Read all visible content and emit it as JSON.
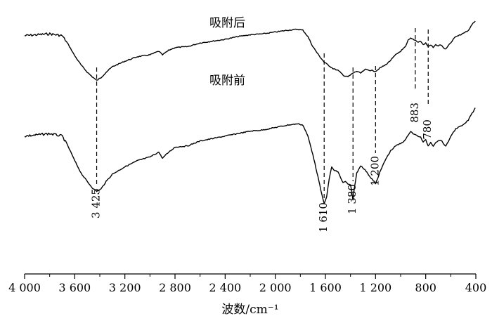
{
  "chart_data": {
    "type": "line",
    "xlabel": "波数/cm⁻¹",
    "xlim": [
      4000,
      400
    ],
    "x_reversed": true,
    "x_ticks": [
      4000,
      3600,
      3200,
      2800,
      2400,
      2000,
      1600,
      1200,
      800,
      400
    ],
    "x_tick_labels": [
      "4 000",
      "3 600",
      "3 200",
      "2 800",
      "2 400",
      "2 000",
      "1 600",
      "1 200",
      "800",
      "400"
    ],
    "grid": false,
    "series": [
      {
        "name": "吸附后",
        "points": [
          [
            4000,
            0.84
          ],
          [
            3900,
            0.85
          ],
          [
            3800,
            0.86
          ],
          [
            3700,
            0.84
          ],
          [
            3650,
            0.74
          ],
          [
            3600,
            0.62
          ],
          [
            3550,
            0.52
          ],
          [
            3500,
            0.44
          ],
          [
            3460,
            0.39
          ],
          [
            3425,
            0.35
          ],
          [
            3390,
            0.38
          ],
          [
            3350,
            0.44
          ],
          [
            3300,
            0.5
          ],
          [
            3200,
            0.56
          ],
          [
            3100,
            0.61
          ],
          [
            3000,
            0.63
          ],
          [
            2930,
            0.67
          ],
          [
            2900,
            0.63
          ],
          [
            2850,
            0.68
          ],
          [
            2800,
            0.71
          ],
          [
            2700,
            0.72
          ],
          [
            2600,
            0.76
          ],
          [
            2500,
            0.78
          ],
          [
            2400,
            0.8
          ],
          [
            2300,
            0.83
          ],
          [
            2200,
            0.85
          ],
          [
            2100,
            0.86
          ],
          [
            2000,
            0.88
          ],
          [
            1900,
            0.9
          ],
          [
            1820,
            0.91
          ],
          [
            1780,
            0.9
          ],
          [
            1740,
            0.83
          ],
          [
            1700,
            0.72
          ],
          [
            1650,
            0.62
          ],
          [
            1610,
            0.55
          ],
          [
            1580,
            0.52
          ],
          [
            1540,
            0.48
          ],
          [
            1500,
            0.46
          ],
          [
            1450,
            0.4
          ],
          [
            1420,
            0.39
          ],
          [
            1380,
            0.43
          ],
          [
            1350,
            0.45
          ],
          [
            1320,
            0.43
          ],
          [
            1280,
            0.47
          ],
          [
            1240,
            0.46
          ],
          [
            1200,
            0.45
          ],
          [
            1160,
            0.49
          ],
          [
            1120,
            0.52
          ],
          [
            1080,
            0.57
          ],
          [
            1040,
            0.63
          ],
          [
            1000,
            0.67
          ],
          [
            960,
            0.72
          ],
          [
            940,
            0.79
          ],
          [
            920,
            0.81
          ],
          [
            900,
            0.8
          ],
          [
            883,
            0.79
          ],
          [
            860,
            0.77
          ],
          [
            840,
            0.78
          ],
          [
            820,
            0.74
          ],
          [
            800,
            0.76
          ],
          [
            780,
            0.72
          ],
          [
            760,
            0.74
          ],
          [
            740,
            0.71
          ],
          [
            720,
            0.74
          ],
          [
            700,
            0.73
          ],
          [
            680,
            0.74
          ],
          [
            660,
            0.71
          ],
          [
            640,
            0.69
          ],
          [
            620,
            0.73
          ],
          [
            600,
            0.76
          ],
          [
            580,
            0.8
          ],
          [
            560,
            0.83
          ],
          [
            540,
            0.84
          ],
          [
            520,
            0.85
          ],
          [
            500,
            0.87
          ],
          [
            480,
            0.88
          ],
          [
            460,
            0.9
          ],
          [
            440,
            0.94
          ],
          [
            420,
            0.98
          ],
          [
            405,
            1.0
          ]
        ]
      },
      {
        "name": "吸附前",
        "points": [
          [
            4000,
            0.55
          ],
          [
            3900,
            0.56
          ],
          [
            3800,
            0.57
          ],
          [
            3700,
            0.55
          ],
          [
            3650,
            0.46
          ],
          [
            3600,
            0.35
          ],
          [
            3550,
            0.25
          ],
          [
            3500,
            0.18
          ],
          [
            3460,
            0.13
          ],
          [
            3425,
            0.1
          ],
          [
            3390,
            0.12
          ],
          [
            3350,
            0.18
          ],
          [
            3300,
            0.24
          ],
          [
            3200,
            0.3
          ],
          [
            3100,
            0.35
          ],
          [
            3000,
            0.38
          ],
          [
            2930,
            0.42
          ],
          [
            2900,
            0.37
          ],
          [
            2850,
            0.42
          ],
          [
            2800,
            0.46
          ],
          [
            2700,
            0.47
          ],
          [
            2600,
            0.51
          ],
          [
            2500,
            0.53
          ],
          [
            2400,
            0.55
          ],
          [
            2300,
            0.57
          ],
          [
            2200,
            0.59
          ],
          [
            2100,
            0.6
          ],
          [
            2000,
            0.62
          ],
          [
            1900,
            0.64
          ],
          [
            1820,
            0.65
          ],
          [
            1780,
            0.64
          ],
          [
            1740,
            0.55
          ],
          [
            1700,
            0.4
          ],
          [
            1660,
            0.22
          ],
          [
            1630,
            0.08
          ],
          [
            1610,
            0.0
          ],
          [
            1590,
            0.06
          ],
          [
            1570,
            0.2
          ],
          [
            1550,
            0.3
          ],
          [
            1530,
            0.27
          ],
          [
            1500,
            0.26
          ],
          [
            1460,
            0.17
          ],
          [
            1440,
            0.18
          ],
          [
            1420,
            0.16
          ],
          [
            1400,
            0.15
          ],
          [
            1390,
            0.1
          ],
          [
            1380,
            0.03
          ],
          [
            1370,
            0.12
          ],
          [
            1350,
            0.25
          ],
          [
            1320,
            0.31
          ],
          [
            1300,
            0.29
          ],
          [
            1270,
            0.26
          ],
          [
            1240,
            0.21
          ],
          [
            1210,
            0.18
          ],
          [
            1200,
            0.16
          ],
          [
            1190,
            0.19
          ],
          [
            1160,
            0.27
          ],
          [
            1120,
            0.36
          ],
          [
            1080,
            0.43
          ],
          [
            1040,
            0.47
          ],
          [
            1000,
            0.49
          ],
          [
            960,
            0.52
          ],
          [
            940,
            0.56
          ],
          [
            920,
            0.59
          ],
          [
            900,
            0.57
          ],
          [
            883,
            0.56
          ],
          [
            860,
            0.55
          ],
          [
            840,
            0.54
          ],
          [
            820,
            0.5
          ],
          [
            800,
            0.52
          ],
          [
            780,
            0.47
          ],
          [
            760,
            0.5
          ],
          [
            740,
            0.47
          ],
          [
            720,
            0.5
          ],
          [
            700,
            0.51
          ],
          [
            680,
            0.52
          ],
          [
            660,
            0.49
          ],
          [
            640,
            0.47
          ],
          [
            620,
            0.5
          ],
          [
            600,
            0.55
          ],
          [
            580,
            0.58
          ],
          [
            560,
            0.61
          ],
          [
            540,
            0.62
          ],
          [
            520,
            0.63
          ],
          [
            500,
            0.64
          ],
          [
            480,
            0.66
          ],
          [
            460,
            0.68
          ],
          [
            440,
            0.72
          ],
          [
            420,
            0.75
          ],
          [
            405,
            0.78
          ]
        ]
      }
    ],
    "annotations": [
      {
        "wavenumber": 3425,
        "label": "3 425"
      },
      {
        "wavenumber": 1610,
        "label": "1 610"
      },
      {
        "wavenumber": 1380,
        "label": "1 380"
      },
      {
        "wavenumber": 1200,
        "label": "1 200"
      },
      {
        "wavenumber": 883,
        "label": "883"
      },
      {
        "wavenumber": 780,
        "label": "780"
      }
    ],
    "series_label_text": [
      "吸附后",
      "吸附前"
    ]
  }
}
